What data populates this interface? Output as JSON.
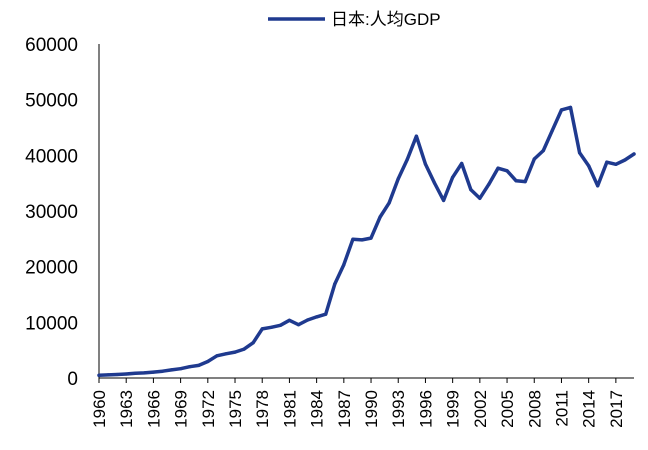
{
  "chart_data": {
    "type": "line",
    "title": "",
    "xlabel": "",
    "ylabel": "",
    "legend_position": "top-center",
    "grid": false,
    "ylim": [
      0,
      60000
    ],
    "yticks": [
      0,
      10000,
      20000,
      30000,
      40000,
      50000,
      60000
    ],
    "xlim": [
      1960,
      2019
    ],
    "xticks": [
      1960,
      1963,
      1966,
      1969,
      1972,
      1975,
      1978,
      1981,
      1984,
      1987,
      1990,
      1993,
      1996,
      1999,
      2002,
      2005,
      2008,
      2011,
      2014,
      2017
    ],
    "series": [
      {
        "name": "日本:人均GDP",
        "color": "#1F3A8F",
        "x": [
          1960,
          1961,
          1962,
          1963,
          1964,
          1965,
          1966,
          1967,
          1968,
          1969,
          1970,
          1971,
          1972,
          1973,
          1974,
          1975,
          1976,
          1977,
          1978,
          1979,
          1980,
          1981,
          1982,
          1983,
          1984,
          1985,
          1986,
          1987,
          1988,
          1989,
          1990,
          1991,
          1992,
          1993,
          1994,
          1995,
          1996,
          1997,
          1998,
          1999,
          2000,
          2001,
          2002,
          2003,
          2004,
          2005,
          2006,
          2007,
          2008,
          2009,
          2010,
          2011,
          2012,
          2013,
          2014,
          2015,
          2016,
          2017,
          2018,
          2019
        ],
        "values": [
          479,
          563,
          634,
          717,
          836,
          920,
          1058,
          1229,
          1451,
          1669,
          2037,
          2272,
          2967,
          3997,
          4354,
          4659,
          5197,
          6335,
          8821,
          9105,
          9463,
          10361,
          9578,
          10425,
          10984,
          11466,
          16882,
          20355,
          24943,
          24813,
          25124,
          28925,
          31465,
          35766,
          39269,
          43429,
          38437,
          35022,
          31903,
          36027,
          38532,
          33846,
          32289,
          34808,
          37689,
          37218,
          35434,
          35275,
          39339,
          40855,
          44508,
          48168,
          48603,
          40454,
          38109,
          34524,
          38761,
          38387,
          39159,
          40247
        ]
      }
    ]
  }
}
